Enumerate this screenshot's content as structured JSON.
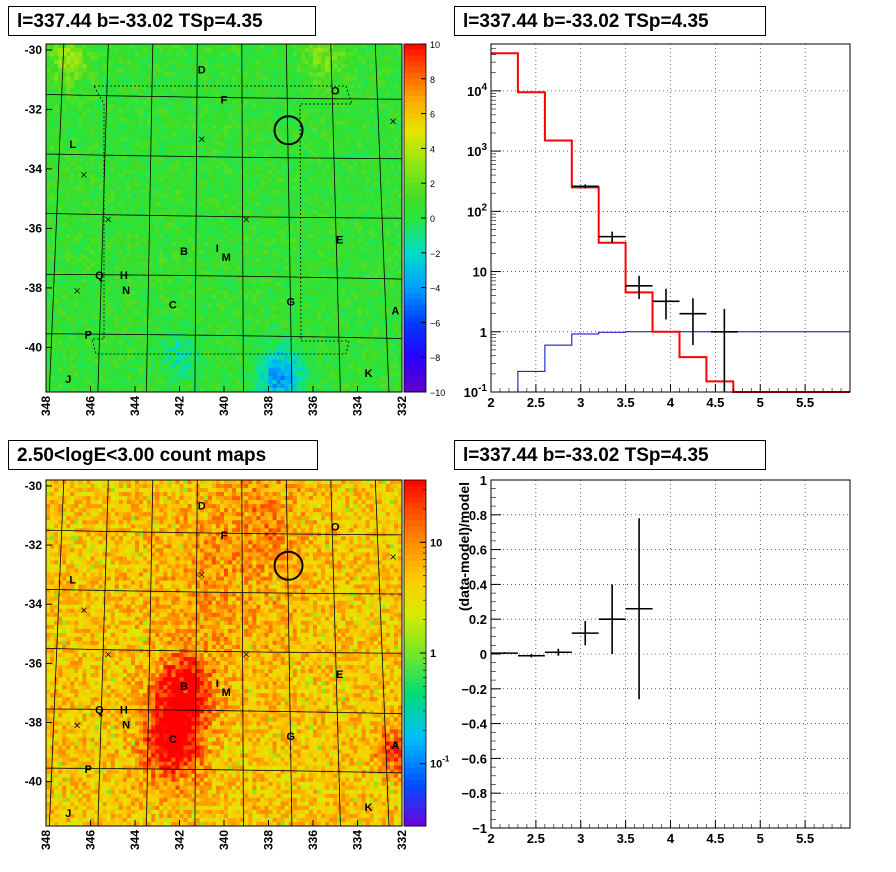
{
  "panels": {
    "tl_title": "l=337.44 b=-33.02 TSp=4.35",
    "tr_title": "l=337.44 b=-33.02 TSp=4.35",
    "bl_title": "2.50<logE<3.00 count maps",
    "br_title": "l=337.44 b=-33.02 TSp=4.35"
  },
  "colors": {
    "data": "#000000",
    "model": "#ff0000",
    "background_model": "#0000cc",
    "grid": "#000000"
  },
  "chart_data": [
    {
      "id": "residual-map",
      "type": "heatmap",
      "xlim": [
        348,
        332
      ],
      "ylim": [
        -41.5,
        -29.8
      ],
      "x_ticks": [
        "348",
        "346",
        "344",
        "342",
        "340",
        "338",
        "336",
        "334",
        "332"
      ],
      "y_ticks": [
        "-30",
        "-32",
        "-34",
        "-36",
        "-38",
        "-40"
      ],
      "colorbar": {
        "ticks": [
          "10",
          "8",
          "6",
          "4",
          "2",
          "0",
          "−2",
          "−4",
          "−6",
          "−8",
          "−10"
        ],
        "range": [
          -10,
          10
        ],
        "scale": "linear"
      },
      "sources": [
        {
          "label": "D",
          "l": 341.0,
          "b": -30.8
        },
        {
          "label": "F",
          "l": 340.0,
          "b": -31.8
        },
        {
          "label": "O",
          "l": 335.0,
          "b": -31.5
        },
        {
          "label": "L",
          "l": 346.8,
          "b": -33.3
        },
        {
          "label": "E",
          "l": 334.8,
          "b": -36.5
        },
        {
          "label": "B",
          "l": 341.8,
          "b": -36.9
        },
        {
          "label": "I",
          "l": 340.3,
          "b": -36.8
        },
        {
          "label": "M",
          "l": 339.9,
          "b": -37.1
        },
        {
          "label": "Q",
          "l": 345.6,
          "b": -37.7
        },
        {
          "label": "H",
          "l": 344.5,
          "b": -37.7
        },
        {
          "label": "N",
          "l": 344.4,
          "b": -38.2
        },
        {
          "label": "C",
          "l": 342.3,
          "b": -38.7
        },
        {
          "label": "G",
          "l": 337.0,
          "b": -38.6
        },
        {
          "label": "A",
          "l": 332.3,
          "b": -38.9
        },
        {
          "label": "P",
          "l": 346.1,
          "b": -39.7
        },
        {
          "label": "J",
          "l": 347.0,
          "b": -41.2
        },
        {
          "label": "K",
          "l": 333.5,
          "b": -41.0
        }
      ]
    },
    {
      "id": "spectrum",
      "type": "line",
      "xlabel": "",
      "ylabel": "",
      "xlim": [
        2,
        6
      ],
      "ylim": [
        0.1,
        60000
      ],
      "yscale": "log",
      "x_ticks": [
        "2",
        "2.5",
        "3",
        "3.5",
        "4",
        "4.5",
        "5",
        "5.5"
      ],
      "y_ticks": [
        "10^-1",
        "1",
        "10",
        "10^2",
        "10^3",
        "10^4"
      ],
      "grid": true,
      "model_steps": {
        "edges": [
          2.0,
          2.3,
          2.6,
          2.9,
          3.2,
          3.5,
          3.8,
          4.1,
          4.4,
          4.7,
          5.0,
          6.0
        ],
        "values": [
          42000,
          9500,
          1500,
          250,
          30,
          4.5,
          1.0,
          0.38,
          0.15,
          0.1,
          0.1
        ]
      },
      "background_steps": {
        "edges": [
          2.0,
          2.3,
          2.6,
          2.9,
          3.2,
          3.5,
          3.8,
          4.1,
          4.4,
          4.7,
          5.0,
          6.0
        ],
        "values": [
          0.1,
          0.22,
          0.6,
          0.92,
          0.98,
          1.0,
          1.0,
          1.0,
          1.0,
          1.0,
          1.0
        ]
      },
      "data_points": [
        {
          "x": 3.05,
          "y": 260,
          "xerr": 0.15,
          "ylo": 240,
          "yhi": 280
        },
        {
          "x": 3.35,
          "y": 38,
          "xerr": 0.15,
          "ylo": 30,
          "yhi": 46
        },
        {
          "x": 3.65,
          "y": 5.8,
          "xerr": 0.15,
          "ylo": 3.5,
          "yhi": 8.5
        },
        {
          "x": 3.95,
          "y": 3.2,
          "xerr": 0.15,
          "ylo": 1.6,
          "yhi": 5.2
        },
        {
          "x": 4.25,
          "y": 2.0,
          "xerr": 0.15,
          "ylo": 0.6,
          "yhi": 3.6
        },
        {
          "x": 4.6,
          "y": 1.0,
          "xerr": 0.15,
          "ylo": 0.1,
          "yhi": 2.4
        }
      ]
    },
    {
      "id": "count-map",
      "type": "heatmap",
      "xlim": [
        348,
        332
      ],
      "ylim": [
        -41.5,
        -29.8
      ],
      "x_ticks": [
        "348",
        "346",
        "344",
        "342",
        "340",
        "338",
        "336",
        "334",
        "332"
      ],
      "y_ticks": [
        "-30",
        "-32",
        "-34",
        "-36",
        "-38",
        "-40"
      ],
      "colorbar": {
        "ticks": [
          "10",
          "1",
          "10^-1"
        ],
        "scale": "log"
      },
      "sources": [
        {
          "label": "D",
          "l": 341.0,
          "b": -30.8
        },
        {
          "label": "F",
          "l": 340.0,
          "b": -31.8
        },
        {
          "label": "O",
          "l": 335.0,
          "b": -31.5
        },
        {
          "label": "L",
          "l": 346.8,
          "b": -33.3
        },
        {
          "label": "E",
          "l": 334.8,
          "b": -36.5
        },
        {
          "label": "B",
          "l": 341.8,
          "b": -36.9
        },
        {
          "label": "I",
          "l": 340.3,
          "b": -36.8
        },
        {
          "label": "M",
          "l": 339.9,
          "b": -37.1
        },
        {
          "label": "Q",
          "l": 345.6,
          "b": -37.7
        },
        {
          "label": "H",
          "l": 344.5,
          "b": -37.7
        },
        {
          "label": "N",
          "l": 344.4,
          "b": -38.2
        },
        {
          "label": "C",
          "l": 342.3,
          "b": -38.7
        },
        {
          "label": "G",
          "l": 337.0,
          "b": -38.6
        },
        {
          "label": "A",
          "l": 332.3,
          "b": -38.9
        },
        {
          "label": "P",
          "l": 346.1,
          "b": -39.7
        },
        {
          "label": "J",
          "l": 347.0,
          "b": -41.2
        },
        {
          "label": "K",
          "l": 333.5,
          "b": -41.0
        }
      ]
    },
    {
      "id": "residual-ratio",
      "type": "scatter",
      "xlabel": "",
      "ylabel": "(data-model)/model",
      "xlim": [
        2,
        6
      ],
      "ylim": [
        -1,
        1
      ],
      "x_ticks": [
        "2",
        "2.5",
        "3",
        "3.5",
        "4",
        "4.5",
        "5",
        "5.5"
      ],
      "y_ticks": [
        "−1",
        "−0.8",
        "−0.6",
        "−0.4",
        "−0.2",
        "0",
        "0.2",
        "0.4",
        "0.6",
        "0.8",
        "1"
      ],
      "grid": true,
      "data_points": [
        {
          "x": 2.15,
          "y": 0.005,
          "xerr": 0.15,
          "ylo": 0.0,
          "yhi": 0.01
        },
        {
          "x": 2.45,
          "y": -0.01,
          "xerr": 0.15,
          "ylo": -0.02,
          "yhi": 0.0
        },
        {
          "x": 2.75,
          "y": 0.01,
          "xerr": 0.15,
          "ylo": -0.01,
          "yhi": 0.03
        },
        {
          "x": 3.05,
          "y": 0.12,
          "xerr": 0.15,
          "ylo": 0.05,
          "yhi": 0.19
        },
        {
          "x": 3.35,
          "y": 0.2,
          "xerr": 0.15,
          "ylo": 0.0,
          "yhi": 0.4
        },
        {
          "x": 3.65,
          "y": 0.26,
          "xerr": 0.15,
          "ylo": -0.26,
          "yhi": 0.78
        }
      ]
    }
  ]
}
